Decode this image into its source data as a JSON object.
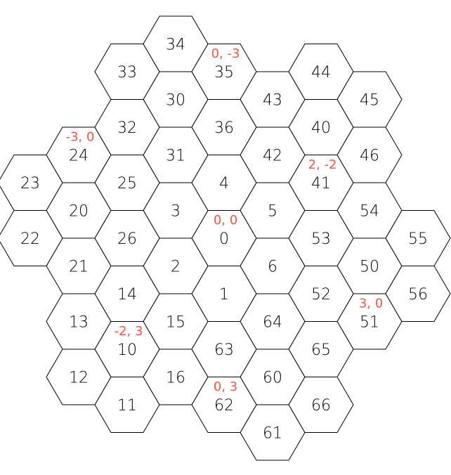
{
  "colors": {
    "coord_text": "#f0554a",
    "hex_stroke": "#000000",
    "hex_fill": "#ffffff"
  },
  "hexes": [
    {
      "id": "0",
      "q": 0,
      "r": 0
    },
    {
      "id": "1",
      "q": 0,
      "r": 1
    },
    {
      "id": "2",
      "q": -1,
      "r": 1
    },
    {
      "id": "3",
      "q": -1,
      "r": 0
    },
    {
      "id": "4",
      "q": 0,
      "r": -1
    },
    {
      "id": "5",
      "q": 1,
      "r": -1
    },
    {
      "id": "6",
      "q": 1,
      "r": 0
    },
    {
      "id": "10",
      "q": -2,
      "r": 3
    },
    {
      "id": "11",
      "q": -2,
      "r": 4
    },
    {
      "id": "12",
      "q": -3,
      "r": 4
    },
    {
      "id": "13",
      "q": -3,
      "r": 3
    },
    {
      "id": "14",
      "q": -2,
      "r": 2
    },
    {
      "id": "15",
      "q": -1,
      "r": 2
    },
    {
      "id": "16",
      "q": -1,
      "r": 3
    },
    {
      "id": "20",
      "q": -3,
      "r": 1
    },
    {
      "id": "21",
      "q": -3,
      "r": 2
    },
    {
      "id": "22",
      "q": -4,
      "r": 2
    },
    {
      "id": "23",
      "q": -4,
      "r": 1
    },
    {
      "id": "24",
      "q": -3,
      "r": 0
    },
    {
      "id": "25",
      "q": -2,
      "r": 0
    },
    {
      "id": "26",
      "q": -2,
      "r": 1
    },
    {
      "id": "30",
      "q": -1,
      "r": -2
    },
    {
      "id": "31",
      "q": -1,
      "r": -1
    },
    {
      "id": "32",
      "q": -2,
      "r": -1
    },
    {
      "id": "33",
      "q": -2,
      "r": -2
    },
    {
      "id": "34",
      "q": -1,
      "r": -3
    },
    {
      "id": "35",
      "q": 0,
      "r": -3
    },
    {
      "id": "36",
      "q": 0,
      "r": -2
    },
    {
      "id": "40",
      "q": 2,
      "r": -3
    },
    {
      "id": "41",
      "q": 2,
      "r": -2
    },
    {
      "id": "42",
      "q": 1,
      "r": -2
    },
    {
      "id": "43",
      "q": 1,
      "r": -3
    },
    {
      "id": "44",
      "q": 2,
      "r": -4
    },
    {
      "id": "45",
      "q": 3,
      "r": -4
    },
    {
      "id": "46",
      "q": 3,
      "r": -3
    },
    {
      "id": "50",
      "q": 3,
      "r": -1
    },
    {
      "id": "51",
      "q": 3,
      "r": 0
    },
    {
      "id": "52",
      "q": 2,
      "r": 0
    },
    {
      "id": "53",
      "q": 2,
      "r": -1
    },
    {
      "id": "54",
      "q": 3,
      "r": -2
    },
    {
      "id": "55",
      "q": 4,
      "r": -2
    },
    {
      "id": "56",
      "q": 4,
      "r": -1
    },
    {
      "id": "60",
      "q": 1,
      "r": 2
    },
    {
      "id": "61",
      "q": 1,
      "r": 3
    },
    {
      "id": "62",
      "q": 0,
      "r": 3
    },
    {
      "id": "63",
      "q": 0,
      "r": 2
    },
    {
      "id": "64",
      "q": 1,
      "r": 1
    },
    {
      "id": "65",
      "q": 2,
      "r": 1
    },
    {
      "id": "66",
      "q": 2,
      "r": 2
    }
  ],
  "coord_labels": [
    {
      "text": "0, -3",
      "q": 0,
      "r": -3
    },
    {
      "text": "-3, 0",
      "q": -3,
      "r": 0
    },
    {
      "text": "2, -2",
      "q": 2,
      "r": -2
    },
    {
      "text": "0, 0",
      "q": 0,
      "r": 0
    },
    {
      "text": "3, 0",
      "q": 3,
      "r": 0
    },
    {
      "text": "-2, 3",
      "q": -2,
      "r": 3
    },
    {
      "text": "0, 3",
      "q": 0,
      "r": 3
    }
  ]
}
